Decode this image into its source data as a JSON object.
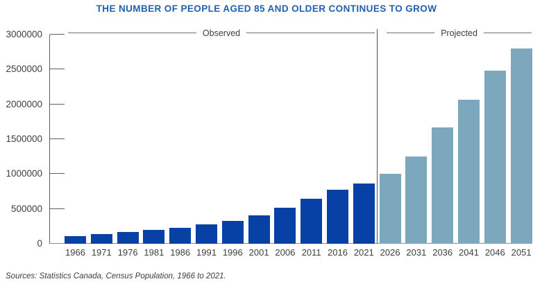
{
  "title": "THE NUMBER OF PEOPLE AGED 85 AND OLDER CONTINUES TO GROW",
  "source_note": "Sources: Statistics Canada, Census Population, 1966 to 2021.",
  "sections": {
    "observed_label": "Observed",
    "projected_label": "Projected"
  },
  "colors": {
    "title": "#2060AE",
    "observed_bar": "#0841A5",
    "projected_bar": "#7CA7BD",
    "axis": "#5f5f5f",
    "text": "#3d3d3d"
  },
  "y_axis": {
    "tick_labels": [
      "3000000",
      "2500000",
      "2000000",
      "1500000",
      "1000000",
      "500000",
      "0"
    ],
    "min": 0,
    "max": 3000000
  },
  "chart_data": {
    "type": "bar",
    "title": "THE NUMBER OF PEOPLE AGED 85 AND OLDER CONTINUES TO GROW",
    "xlabel": "",
    "ylabel": "",
    "ylim": [
      0,
      3000000
    ],
    "yticks": [
      0,
      500000,
      1000000,
      1500000,
      2000000,
      2500000,
      3000000
    ],
    "grid": false,
    "legend_position": "top-inline-rules",
    "categories": [
      "1966",
      "1971",
      "1976",
      "1981",
      "1986",
      "1991",
      "1996",
      "2001",
      "2006",
      "2011",
      "2016",
      "2021",
      "2026",
      "2031",
      "2036",
      "2041",
      "2046",
      "2051"
    ],
    "series": [
      {
        "name": "Observed",
        "x": [
          "1966",
          "1971",
          "1976",
          "1981",
          "1986",
          "1991",
          "1996",
          "2001",
          "2006",
          "2011",
          "2016",
          "2021"
        ],
        "values": [
          110000,
          135000,
          170000,
          195000,
          225000,
          280000,
          330000,
          410000,
          520000,
          650000,
          775000,
          860000
        ]
      },
      {
        "name": "Projected",
        "x": [
          "2026",
          "2031",
          "2036",
          "2041",
          "2046",
          "2051"
        ],
        "values": [
          1005000,
          1255000,
          1665000,
          2070000,
          2485000,
          2800000
        ]
      }
    ]
  }
}
